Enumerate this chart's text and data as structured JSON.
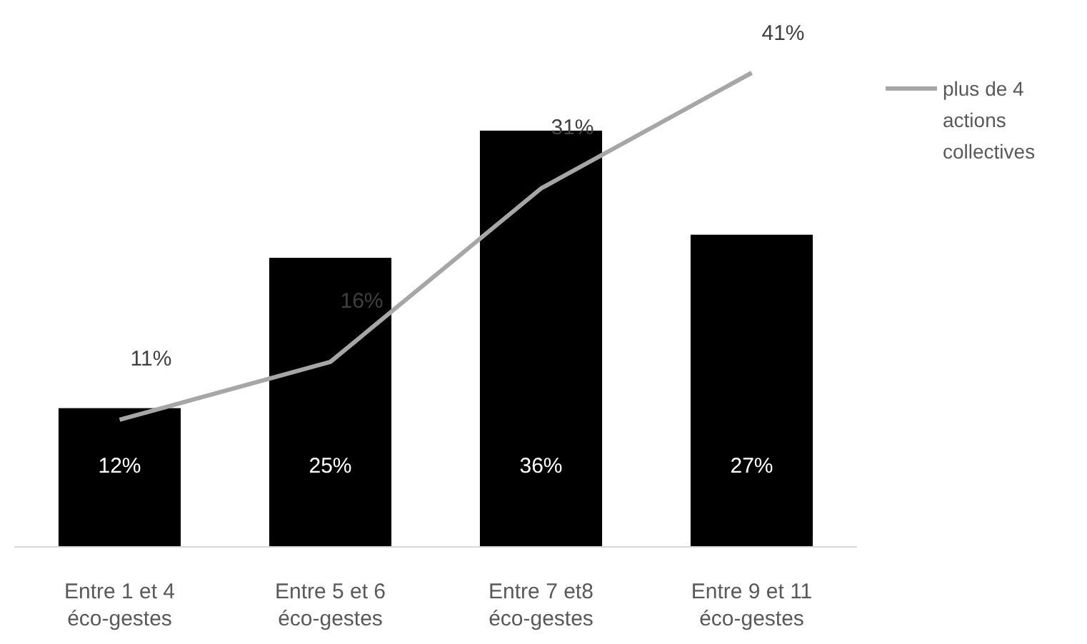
{
  "chart_data": {
    "type": "bar",
    "categories": [
      "Entre 1 et 4\néco-gestes",
      "Entre 5 et 6\néco-gestes",
      "Entre 7 et8\néco-gestes",
      "Entre 9 et 11\néco-gestes"
    ],
    "legend": "right",
    "series": [
      {
        "color": "#000000",
        "values": [
          12,
          25,
          36,
          27
        ],
        "value_labels": [
          "12%",
          "25%",
          "36%",
          "27%"
        ]
      },
      {
        "type": "line",
        "name": "plus de 4 actions collectives",
        "color": "#a6a6a6",
        "values": [
          11,
          16,
          31,
          41
        ],
        "value_labels": [
          "11%",
          "16%",
          "31%",
          "41%"
        ]
      }
    ]
  }
}
